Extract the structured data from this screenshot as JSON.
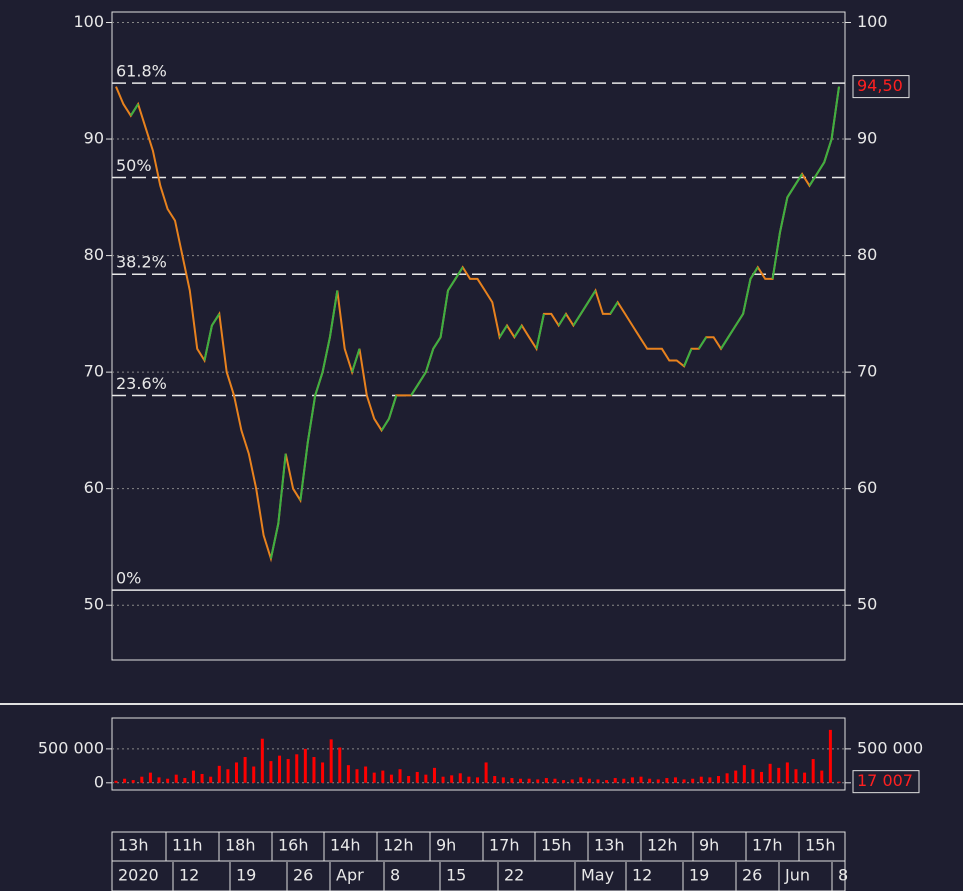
{
  "chart_data": [
    {
      "type": "line",
      "color": "#e8821e",
      "values": [
        94.5,
        93,
        92,
        93,
        91,
        89,
        86,
        84,
        83,
        80,
        77,
        72,
        71,
        74,
        75,
        70,
        68,
        65,
        63,
        60,
        56,
        54,
        57,
        63,
        60,
        59,
        64,
        68,
        70,
        73,
        77,
        72,
        70,
        72,
        68,
        66,
        65,
        66,
        68,
        68,
        68,
        69,
        70,
        72,
        73,
        77,
        78,
        79,
        78,
        78,
        77,
        76,
        73,
        74,
        73,
        74,
        73,
        72,
        75,
        75,
        74,
        75,
        74,
        75,
        76,
        77,
        75,
        75,
        76,
        75,
        74,
        73,
        72,
        72,
        72,
        71,
        71,
        70.5,
        72,
        72,
        73,
        73,
        72,
        73,
        74,
        75,
        78,
        79,
        78,
        78,
        82,
        85,
        86,
        87,
        86,
        87,
        88,
        90,
        94.5
      ],
      "ylim": [
        45.3,
        100.9
      ],
      "yticks": [
        50,
        60,
        70,
        80,
        90,
        100
      ],
      "grid": true,
      "fib_levels": [
        {
          "label": "61.8%",
          "value": 94.8
        },
        {
          "label": "50%",
          "value": 86.7
        },
        {
          "label": "38.2%",
          "value": 78.4
        },
        {
          "label": "23.6%",
          "value": 68.0
        },
        {
          "label": "0%",
          "value": 51.3
        }
      ],
      "last_value": 94.5,
      "last_value_label": "94,50"
    },
    {
      "type": "bar",
      "color": "#ff0000",
      "values": [
        30000,
        60000,
        40000,
        90000,
        150000,
        80000,
        60000,
        120000,
        70000,
        180000,
        130000,
        90000,
        250000,
        200000,
        300000,
        380000,
        240000,
        650000,
        320000,
        400000,
        350000,
        420000,
        500000,
        380000,
        300000,
        640000,
        520000,
        260000,
        200000,
        240000,
        150000,
        180000,
        120000,
        200000,
        100000,
        160000,
        120000,
        220000,
        90000,
        110000,
        140000,
        90000,
        80000,
        300000,
        100000,
        80000,
        70000,
        60000,
        60000,
        50000,
        70000,
        60000,
        40000,
        50000,
        80000,
        60000,
        50000,
        40000,
        70000,
        60000,
        80000,
        90000,
        60000,
        50000,
        70000,
        80000,
        50000,
        60000,
        90000,
        80000,
        100000,
        140000,
        180000,
        260000,
        200000,
        160000,
        280000,
        220000,
        300000,
        200000,
        150000,
        350000,
        180000,
        780000,
        17007
      ],
      "ylim": [
        -106000,
        955000
      ],
      "yticks": [
        0,
        {
          "value": 500000,
          "label": "500 000"
        }
      ],
      "grid": true,
      "last_value": 17007,
      "last_value_label": "17 007"
    }
  ],
  "time_axis": {
    "row1": [
      "13h",
      "11h",
      "18h",
      "16h",
      "14h",
      "12h",
      "9h",
      "17h",
      "15h",
      "13h",
      "12h",
      "9h",
      "17h",
      "15h"
    ],
    "row2": [
      "2020",
      "12",
      "19",
      "26",
      "Apr",
      "8",
      "15",
      "22",
      "May",
      "12",
      "19",
      "26",
      "Jun",
      "8"
    ]
  }
}
